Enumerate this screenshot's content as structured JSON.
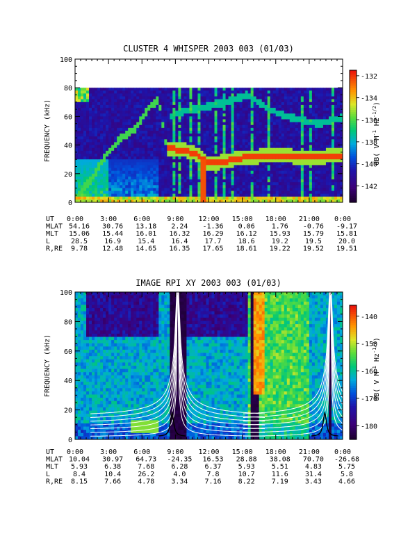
{
  "panels": [
    {
      "title": "CLUSTER 4 WHISPER 2003 003 (01/03)",
      "ylabel": "FREQUENCY (kHz)",
      "cbar_label": "dB( V M⁻¹ Hz⁻¹ᐟ²)",
      "cbar_label_parts": [
        "dB( V M",
        "-1",
        " Hz",
        "-1/2",
        ")"
      ],
      "yticks": [
        "0",
        "20",
        "40",
        "60",
        "80",
        "100"
      ],
      "cbar_ticks": [
        "-132",
        "-134",
        "-136",
        "-138",
        "-140",
        "-142"
      ],
      "time_ticks": [
        "0:00",
        "3:00",
        "6:00",
        "9:00",
        "12:00",
        "15:00",
        "18:00",
        "21:00",
        "0:00"
      ],
      "ephem_labels": [
        "UT",
        "MLAT",
        "MLT",
        "L",
        "R,RE"
      ],
      "ephem": [
        [
          "54.16",
          "30.76",
          "13.18",
          "2.24",
          "-1.36",
          "0.06",
          "1.76",
          "-0.76",
          "-9.17"
        ],
        [
          "15.06",
          "15.44",
          "16.01",
          "16.32",
          "16.29",
          "16.12",
          "15.93",
          "15.79",
          "15.81"
        ],
        [
          "28.5",
          "16.9",
          "15.4",
          "16.4",
          "17.7",
          "18.6",
          "19.2",
          "19.5",
          "20.0"
        ],
        [
          "9.78",
          "12.48",
          "14.65",
          "16.35",
          "17.65",
          "18.61",
          "19.22",
          "19.52",
          "19.51"
        ]
      ]
    },
    {
      "title": "IMAGE RPI XY 2003 003 (01/03)",
      "ylabel": "FREQUENCY (kHz)",
      "cbar_label_parts": [
        "dB( V M",
        "-1",
        " Hz",
        "-1/2",
        ")"
      ],
      "yticks": [
        "0",
        "20",
        "40",
        "60",
        "80",
        "100"
      ],
      "cbar_ticks": [
        "-140",
        "-150",
        "-160",
        "-170",
        "-180"
      ],
      "time_ticks": [
        "0:00",
        "3:00",
        "6:00",
        "9:00",
        "12:00",
        "15:00",
        "18:00",
        "21:00",
        "0:00"
      ],
      "ephem_labels": [
        "UT",
        "MLAT",
        "MLT",
        "L",
        "R,RE"
      ],
      "ephem": [
        [
          "10.04",
          "30.97",
          "64.73",
          "-24.35",
          "16.53",
          "28.88",
          "38.08",
          "70.70",
          "-26.68"
        ],
        [
          "5.93",
          "6.38",
          "7.68",
          "6.28",
          "6.37",
          "5.93",
          "5.51",
          "4.83",
          "5.75"
        ],
        [
          "8.4",
          "10.4",
          "26.2",
          "4.0",
          "7.8",
          "10.7",
          "11.6",
          "31.4",
          "5.8"
        ],
        [
          "8.15",
          "7.66",
          "4.78",
          "3.34",
          "7.16",
          "8.22",
          "7.19",
          "3.43",
          "4.66"
        ]
      ]
    }
  ],
  "chart_data": [
    {
      "type": "heatmap",
      "title": "CLUSTER 4 WHISPER 2003 003 (01/03)",
      "xlabel": "UT",
      "ylabel": "FREQUENCY (kHz)",
      "xlim": [
        0,
        24
      ],
      "ylim": [
        0,
        100
      ],
      "data_ylim": [
        0,
        80
      ],
      "colorbar": {
        "label": "dB( V M-1 Hz-1/2)",
        "range": [
          -143.5,
          -131.5
        ],
        "colormap": "rainbow"
      },
      "features": {
        "plasma_line": [
          [
            0.0,
            3
          ],
          [
            1.5,
            16
          ],
          [
            2.5,
            30
          ],
          [
            4.0,
            44
          ],
          [
            5.5,
            52
          ],
          [
            6.5,
            65
          ],
          [
            7.5,
            72
          ],
          [
            8.2,
            38
          ],
          [
            9.0,
            37
          ],
          [
            10.0,
            36
          ],
          [
            11.0,
            33
          ],
          [
            12.0,
            27
          ],
          [
            13.0,
            28
          ],
          [
            15.0,
            31
          ],
          [
            18.0,
            33
          ],
          [
            21.0,
            31
          ],
          [
            24.0,
            33
          ]
        ],
        "upper_band": [
          [
            8.5,
            60
          ],
          [
            10.0,
            64
          ],
          [
            12.0,
            67
          ],
          [
            14.0,
            71
          ],
          [
            15.5,
            75
          ],
          [
            17.0,
            67
          ],
          [
            18.5,
            61
          ],
          [
            20.0,
            58
          ],
          [
            21.0,
            56
          ],
          [
            22.0,
            55
          ],
          [
            24.0,
            59
          ]
        ]
      }
    },
    {
      "type": "heatmap",
      "title": "IMAGE RPI XY 2003 003 (01/03)",
      "xlabel": "UT",
      "ylabel": "FREQUENCY (kHz)",
      "xlim": [
        0,
        24
      ],
      "ylim": [
        0,
        100
      ],
      "colorbar": {
        "label": "dB( V M-1 Hz-1/2)",
        "range": [
          -185,
          -136
        ],
        "colormap": "rainbow"
      },
      "features": {
        "dark_bands_ut": [
          [
            8.5,
            9.9
          ],
          [
            15.8,
            16.4
          ],
          [
            22.7,
            23.0
          ]
        ],
        "curve_centers_ut": [
          9.2,
          22.9
        ],
        "n_overlay_curves": 7
      }
    }
  ]
}
